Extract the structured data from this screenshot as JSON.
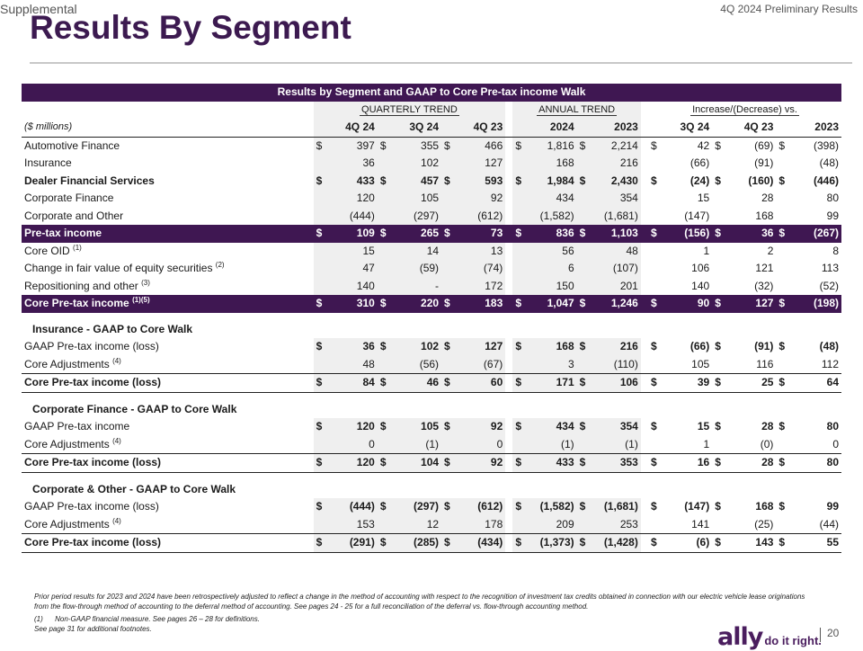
{
  "header": {
    "section": "Supplemental",
    "title": "Results By Segment",
    "report": "4Q 2024 Preliminary Results"
  },
  "table": {
    "title": "Results by Segment and GAAP to Core Pre-tax income Walk",
    "groups": [
      "QUARTERLY TREND",
      "ANNUAL TREND",
      "Increase/(Decrease) vs."
    ],
    "unit_label": "($ millions)",
    "columns": [
      "4Q 24",
      "3Q 24",
      "4Q 23",
      "2024",
      "2023",
      "3Q 24",
      "4Q 23",
      "2023"
    ],
    "rows": [
      {
        "label": "Automotive Finance",
        "sup": "",
        "style": "normal",
        "dollar": true,
        "values": [
          "397",
          "355",
          "466",
          "1,816",
          "2,214",
          "42",
          "(69)",
          "(398)"
        ]
      },
      {
        "label": "Insurance",
        "sup": "",
        "style": "normal",
        "dollar": false,
        "values": [
          "36",
          "102",
          "127",
          "168",
          "216",
          "(66)",
          "(91)",
          "(48)"
        ]
      },
      {
        "label": "Dealer Financial Services",
        "sup": "",
        "style": "bold",
        "dollar": true,
        "values": [
          "433",
          "457",
          "593",
          "1,984",
          "2,430",
          "(24)",
          "(160)",
          "(446)"
        ]
      },
      {
        "label": "Corporate Finance",
        "sup": "",
        "style": "normal",
        "dollar": false,
        "values": [
          "120",
          "105",
          "92",
          "434",
          "354",
          "15",
          "28",
          "80"
        ]
      },
      {
        "label": "Corporate and Other",
        "sup": "",
        "style": "normal",
        "dollar": false,
        "values": [
          "(444)",
          "(297)",
          "(612)",
          "(1,582)",
          "(1,681)",
          "(147)",
          "168",
          "99"
        ]
      },
      {
        "label": "Pre-tax income",
        "sup": "",
        "style": "purple",
        "dollar": true,
        "values": [
          "109",
          "265",
          "73",
          "836",
          "1,103",
          "(156)",
          "36",
          "(267)"
        ]
      },
      {
        "label": "Core OID",
        "sup": "(1)",
        "style": "normal",
        "dollar": false,
        "values": [
          "15",
          "14",
          "13",
          "56",
          "48",
          "1",
          "2",
          "8"
        ]
      },
      {
        "label": "Change in fair value of equity securities",
        "sup": "(2)",
        "style": "normal",
        "dollar": false,
        "values": [
          "47",
          "(59)",
          "(74)",
          "6",
          "(107)",
          "106",
          "121",
          "113"
        ]
      },
      {
        "label": "Repositioning and other",
        "sup": "(3)",
        "style": "normal",
        "dollar": false,
        "values": [
          "140",
          "-",
          "172",
          "150",
          "201",
          "140",
          "(32)",
          "(52)"
        ]
      },
      {
        "label": "Core Pre-tax income",
        "sup": "(1)(5)",
        "style": "purple",
        "dollar": true,
        "values": [
          "310",
          "220",
          "183",
          "1,047",
          "1,246",
          "90",
          "127",
          "(198)"
        ]
      }
    ],
    "sections": [
      {
        "title": "Insurance - GAAP to Core Walk",
        "gaap": {
          "label": "GAAP Pre-tax income (loss)",
          "values": [
            "36",
            "102",
            "127",
            "168",
            "216",
            "(66)",
            "(91)",
            "(48)"
          ]
        },
        "adj": {
          "label": "Core Adjustments",
          "sup": "(4)",
          "values": [
            "48",
            "(56)",
            "(67)",
            "3",
            "(110)",
            "105",
            "116",
            "112"
          ]
        },
        "core": {
          "label": "Core Pre-tax income (loss)",
          "values": [
            "84",
            "46",
            "60",
            "171",
            "106",
            "39",
            "25",
            "64"
          ]
        }
      },
      {
        "title": "Corporate Finance - GAAP to Core Walk",
        "gaap": {
          "label": "GAAP Pre-tax income",
          "values": [
            "120",
            "105",
            "92",
            "434",
            "354",
            "15",
            "28",
            "80"
          ]
        },
        "adj": {
          "label": "Core Adjustments",
          "sup": "(4)",
          "values": [
            "0",
            "(1)",
            "0",
            "(1)",
            "(1)",
            "1",
            "(0)",
            "0"
          ]
        },
        "core": {
          "label": "Core Pre-tax income (loss)",
          "values": [
            "120",
            "104",
            "92",
            "433",
            "353",
            "16",
            "28",
            "80"
          ]
        }
      },
      {
        "title": "Corporate & Other - GAAP to Core Walk",
        "gaap": {
          "label": "GAAP Pre-tax income (loss)",
          "values": [
            "(444)",
            "(297)",
            "(612)",
            "(1,582)",
            "(1,681)",
            "(147)",
            "168",
            "99"
          ]
        },
        "adj": {
          "label": "Core Adjustments",
          "sup": "(4)",
          "values": [
            "153",
            "12",
            "178",
            "209",
            "253",
            "141",
            "(25)",
            "(44)"
          ]
        },
        "core": {
          "label": "Core Pre-tax income (loss)",
          "values": [
            "(291)",
            "(285)",
            "(434)",
            "(1,373)",
            "(1,428)",
            "(6)",
            "143",
            "55"
          ]
        }
      }
    ]
  },
  "footnotes": {
    "main": "Prior period results for 2023 and 2024 have been retrospectively adjusted to reflect a change in the method of accounting with respect to the recognition of investment tax credits obtained in connection with our electric vehicle lease originations from the flow-through method of accounting to the deferral method of accounting. See pages 24 - 25 for a full reconciliation of the deferral vs. flow-through accounting method.",
    "note1_num": "(1)",
    "note1_text": "Non-GAAP financial measure. See pages 26 – 28 for definitions.",
    "note2": "See page 31 for additional footnotes."
  },
  "brand": {
    "logo": "ally",
    "tagline": "do it right."
  },
  "page_number": "20",
  "dollar_sign": "$"
}
